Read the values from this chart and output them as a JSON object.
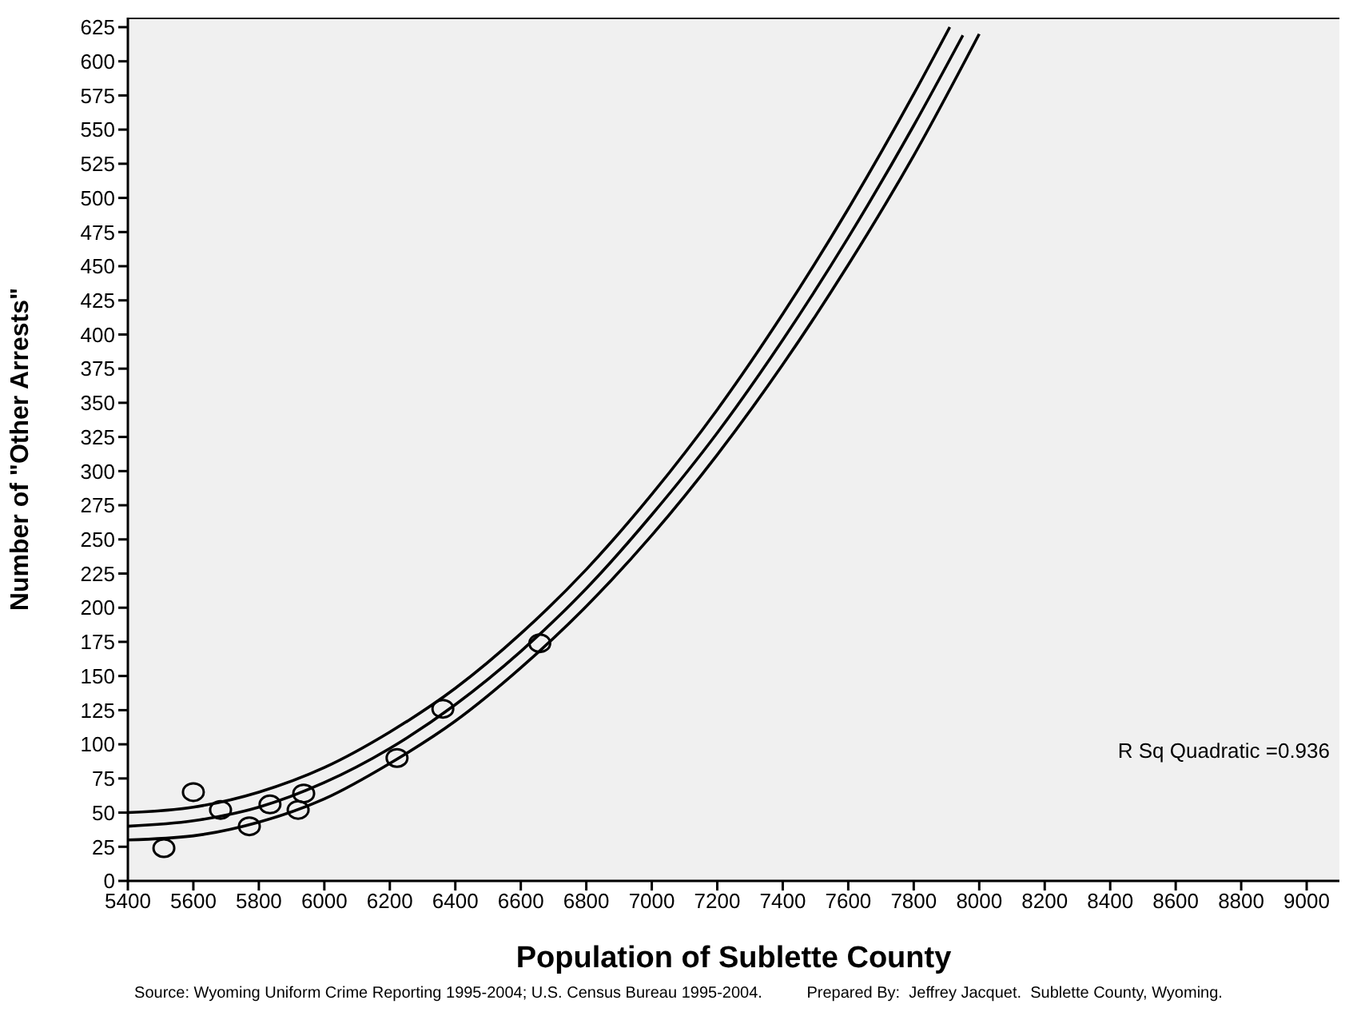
{
  "chart_data": {
    "type": "scatter",
    "xlabel": "Population of Sublette County",
    "ylabel": "Number of \"Other Arrests\"",
    "xlim": [
      5400,
      9100
    ],
    "xticks": [
      5400,
      5600,
      5800,
      6000,
      6200,
      6400,
      6600,
      6800,
      7000,
      7200,
      7400,
      7600,
      7800,
      8000,
      8200,
      8400,
      8600,
      8800,
      9000
    ],
    "ylim": [
      0,
      632
    ],
    "yticks": [
      0,
      25,
      50,
      75,
      100,
      125,
      150,
      175,
      200,
      225,
      250,
      275,
      300,
      325,
      350,
      375,
      400,
      425,
      450,
      475,
      500,
      525,
      550,
      575,
      600,
      625
    ],
    "grid": false,
    "annotations": [
      "R Sq Quadratic =0.936",
      "Source: Wyoming Uniform Crime Reporting 1995-2004; U.S. Census Bureau 1995-2004.",
      "Prepared By:  Jeffrey Jacquet.  Sublette County, Wyoming."
    ],
    "series": [
      {
        "color": "#000000",
        "marker": "circle",
        "x": [
          5510,
          5600,
          5683,
          5771,
          5834,
          5920,
          5937,
          6222,
          6362,
          6658
        ],
        "values": [
          24,
          65,
          52,
          40,
          56,
          52,
          64,
          90,
          126,
          174
        ]
      },
      {
        "type": "line",
        "color": "#000000",
        "marker": "none",
        "x": [
          5400,
          5600,
          5800,
          6000,
          6200,
          6400,
          6600,
          6800,
          7000,
          7200,
          7400,
          7600,
          7800,
          7910
        ],
        "values": [
          50,
          54,
          65,
          83,
          109,
          141,
          181,
          228,
          283,
          345,
          415,
          492,
          576,
          625
        ]
      },
      {
        "type": "line",
        "color": "#000000",
        "marker": "none",
        "x": [
          5400,
          5600,
          5800,
          6000,
          6200,
          6400,
          6600,
          6800,
          7000,
          7200,
          7400,
          7600,
          7800,
          7950
        ],
        "values": [
          40,
          44,
          54,
          72,
          97,
          129,
          168,
          214,
          268,
          328,
          396,
          471,
          553,
          619
        ]
      },
      {
        "type": "line",
        "color": "#000000",
        "marker": "none",
        "x": [
          5400,
          5600,
          5800,
          6000,
          6200,
          6400,
          6600,
          6800,
          7000,
          7200,
          7400,
          7600,
          7800,
          8000
        ],
        "values": [
          30,
          33,
          43,
          60,
          86,
          117,
          156,
          201,
          253,
          312,
          378,
          451,
          531,
          620
        ]
      }
    ]
  }
}
